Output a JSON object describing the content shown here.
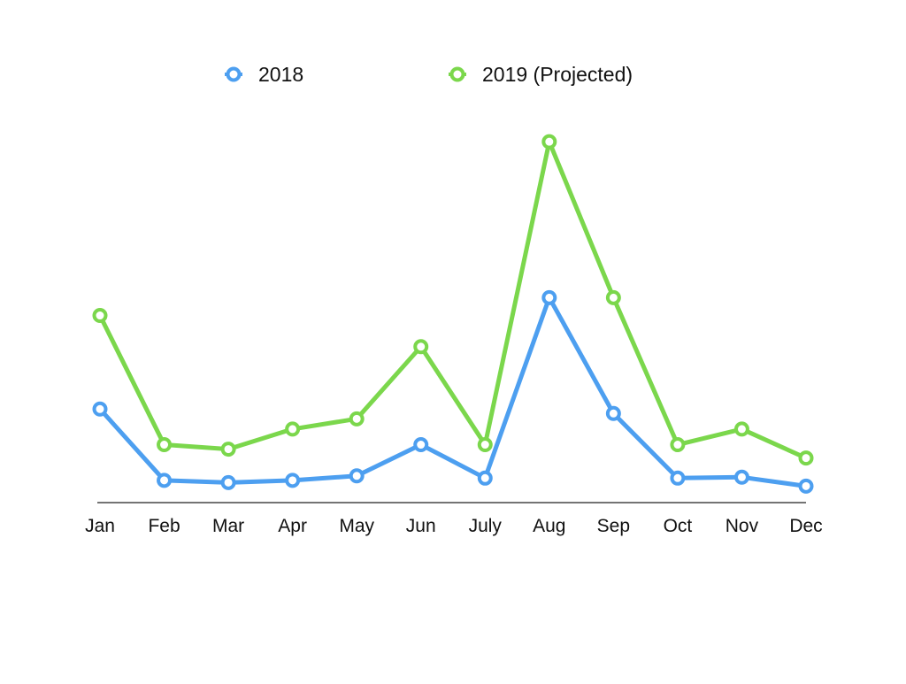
{
  "chart_data": {
    "type": "line",
    "categories": [
      "Jan",
      "Feb",
      "Mar",
      "Apr",
      "May",
      "Jun",
      "July",
      "Aug",
      "Sep",
      "Oct",
      "Nov",
      "Dec"
    ],
    "series": [
      {
        "name": "2018",
        "color": "#4d9ff0",
        "values": [
          21,
          5,
          4.5,
          5,
          6,
          13,
          5.5,
          46,
          20,
          5.5,
          5.7,
          3.7
        ]
      },
      {
        "name": "2019 (Projected)",
        "color": "#7bd74c",
        "values": [
          42,
          13,
          12,
          16.5,
          18.8,
          35,
          13,
          81,
          46,
          13,
          16.5,
          10
        ]
      }
    ],
    "xlabel": "",
    "ylabel": "",
    "ylim": [
      0,
      85
    ],
    "legend_position": "top-center",
    "grid": false,
    "show_y_axis": false
  }
}
